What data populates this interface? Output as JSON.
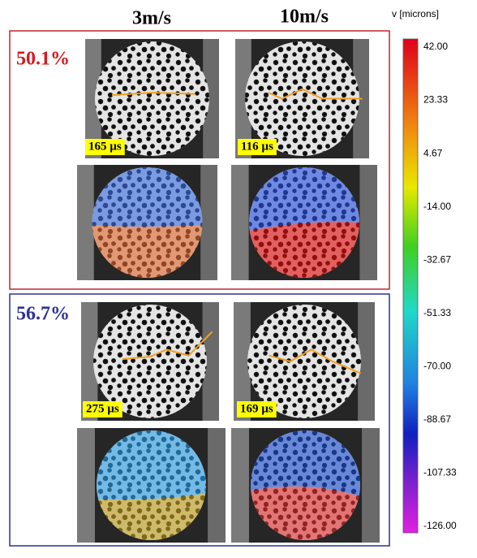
{
  "columns": [
    "3m/s",
    "10m/s"
  ],
  "panels": [
    {
      "label": "50.1%",
      "times": [
        "165 µs",
        "116 µs"
      ]
    },
    {
      "label": "56.7%",
      "times": [
        "275 µs",
        "169 µs"
      ]
    }
  ],
  "colorbar": {
    "title": "v [microns]",
    "ticks": [
      "42.00",
      "23.33",
      "4.67",
      "-14.00",
      "-32.67",
      "-51.33",
      "-70.00",
      "-88.67",
      "-107.33",
      "-126.00"
    ]
  }
}
